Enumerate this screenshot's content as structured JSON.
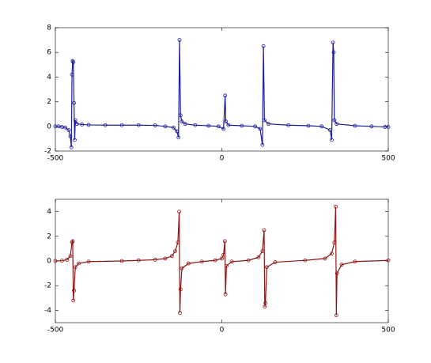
{
  "chart_data": [
    {
      "type": "line",
      "marker": "circle",
      "grid": false,
      "x": [
        -500,
        -490,
        -480,
        -470,
        -460,
        -455,
        -452,
        -450,
        -448,
        -446,
        -444,
        -442,
        -440,
        -435,
        -420,
        -400,
        -350,
        -300,
        -250,
        -200,
        -170,
        -145,
        -135,
        -130,
        -127,
        -124,
        -120,
        -110,
        -80,
        -40,
        -10,
        5,
        10,
        12,
        20,
        60,
        100,
        115,
        122,
        125,
        128,
        140,
        200,
        260,
        300,
        325,
        330,
        334,
        336,
        338,
        345,
        400,
        450,
        490,
        500
      ],
      "series": [
        {
          "color": "#1c1c9c",
          "values": [
            0,
            0,
            -0.05,
            -0.1,
            -0.3,
            -0.8,
            -1.7,
            4.2,
            5.3,
            5.2,
            1.9,
            -1.1,
            0.5,
            0.2,
            0.15,
            0.12,
            0.1,
            0.1,
            0.1,
            0.08,
            0,
            -0.1,
            -0.4,
            -0.9,
            7.0,
            0.9,
            0.4,
            0.2,
            0.1,
            0.05,
            0,
            -0.2,
            2.5,
            0.4,
            0.1,
            0.05,
            0,
            -0.2,
            -1.5,
            6.5,
            0.5,
            0.2,
            0.1,
            0.05,
            0,
            -0.3,
            -1.1,
            6.8,
            6.0,
            0.5,
            0.2,
            0.05,
            0,
            -0.05,
            -0.05
          ]
        }
      ],
      "xlim": [
        -500,
        500
      ],
      "xticks": [
        -500,
        0,
        500
      ],
      "ylim": [
        -2,
        8
      ],
      "yticks": [
        -2,
        0,
        2,
        4,
        6,
        8
      ]
    },
    {
      "type": "line",
      "marker": "circle",
      "grid": false,
      "x": [
        -500,
        -480,
        -465,
        -455,
        -450,
        -448,
        -446,
        -444,
        -440,
        -430,
        -400,
        -300,
        -250,
        -200,
        -170,
        -150,
        -140,
        -132,
        -128,
        -126,
        -124,
        -120,
        -100,
        -60,
        -20,
        0,
        5,
        9,
        11,
        14,
        30,
        80,
        110,
        122,
        127,
        129,
        131,
        135,
        160,
        250,
        310,
        330,
        338,
        342,
        344,
        346,
        360,
        400,
        500
      ],
      "series": [
        {
          "color": "#8e1414",
          "values": [
            0,
            0.02,
            0.1,
            0.4,
            1.5,
            1.6,
            -3.2,
            -2.4,
            -0.5,
            -0.2,
            -0.05,
            0,
            0.05,
            0.1,
            0.2,
            0.4,
            0.8,
            1.5,
            4.0,
            -4.2,
            -2.3,
            -0.6,
            -0.2,
            -0.05,
            0.05,
            0.2,
            0.5,
            1.6,
            -2.7,
            -0.4,
            -0.05,
            0.05,
            0.3,
            0.8,
            2.5,
            -3.7,
            -3.4,
            -0.5,
            -0.1,
            0.05,
            0.2,
            0.6,
            1.5,
            4.4,
            -4.4,
            -1.0,
            -0.3,
            -0.05,
            0.05
          ]
        }
      ],
      "xlim": [
        -500,
        500
      ],
      "xticks": [
        -500,
        0,
        500
      ],
      "ylim": [
        -5,
        5
      ],
      "yticks": [
        -4,
        -2,
        0,
        2,
        4
      ]
    }
  ]
}
